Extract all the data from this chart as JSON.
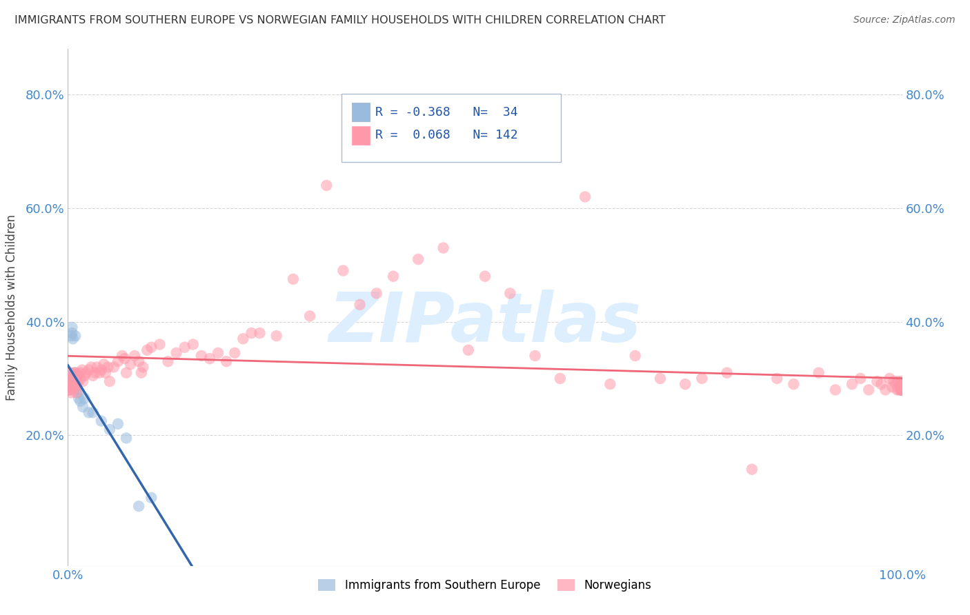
{
  "title": "IMMIGRANTS FROM SOUTHERN EUROPE VS NORWEGIAN FAMILY HOUSEHOLDS WITH CHILDREN CORRELATION CHART",
  "source": "Source: ZipAtlas.com",
  "ylabel": "Family Households with Children",
  "xlim": [
    0.0,
    1.0
  ],
  "ylim": [
    -0.03,
    0.88
  ],
  "yticks": [
    0.2,
    0.4,
    0.6,
    0.8
  ],
  "ytick_labels": [
    "20.0%",
    "40.0%",
    "60.0%",
    "80.0%"
  ],
  "xticks": [
    0.0,
    1.0
  ],
  "xtick_labels": [
    "0.0%",
    "100.0%"
  ],
  "legend_r_blue": "-0.368",
  "legend_n_blue": "34",
  "legend_r_pink": "0.068",
  "legend_n_pink": "142",
  "legend_label_blue": "Immigrants from Southern Europe",
  "legend_label_pink": "Norwegians",
  "blue_color": "#99BBDD",
  "pink_color": "#FF99AA",
  "blue_trend_color": "#3366AA",
  "pink_trend_color": "#EE6677",
  "blue_dash_color": "#99BBDD",
  "watermark": "ZIPatlas",
  "watermark_color": "#DDEEFF",
  "background_color": "#FFFFFF",
  "grid_color": "#CCCCCC",
  "blue_x": [
    0.001,
    0.002,
    0.002,
    0.003,
    0.003,
    0.004,
    0.004,
    0.004,
    0.005,
    0.005,
    0.006,
    0.006,
    0.007,
    0.007,
    0.008,
    0.008,
    0.009,
    0.009,
    0.01,
    0.01,
    0.011,
    0.012,
    0.013,
    0.015,
    0.018,
    0.02,
    0.025,
    0.03,
    0.04,
    0.05,
    0.06,
    0.07,
    0.085,
    0.1
  ],
  "blue_y": [
    0.28,
    0.295,
    0.31,
    0.285,
    0.3,
    0.295,
    0.305,
    0.375,
    0.38,
    0.39,
    0.37,
    0.3,
    0.285,
    0.295,
    0.31,
    0.3,
    0.375,
    0.295,
    0.285,
    0.29,
    0.28,
    0.275,
    0.265,
    0.26,
    0.25,
    0.265,
    0.24,
    0.24,
    0.225,
    0.21,
    0.22,
    0.195,
    0.075,
    0.09
  ],
  "pink_x": [
    0.001,
    0.002,
    0.003,
    0.003,
    0.004,
    0.004,
    0.005,
    0.005,
    0.006,
    0.006,
    0.007,
    0.008,
    0.008,
    0.009,
    0.01,
    0.01,
    0.011,
    0.012,
    0.013,
    0.015,
    0.015,
    0.017,
    0.018,
    0.02,
    0.022,
    0.025,
    0.028,
    0.03,
    0.033,
    0.035,
    0.038,
    0.04,
    0.043,
    0.045,
    0.048,
    0.05,
    0.055,
    0.06,
    0.065,
    0.068,
    0.07,
    0.075,
    0.08,
    0.085,
    0.088,
    0.09,
    0.095,
    0.1,
    0.11,
    0.12,
    0.13,
    0.14,
    0.15,
    0.16,
    0.17,
    0.18,
    0.19,
    0.2,
    0.21,
    0.22,
    0.23,
    0.25,
    0.27,
    0.29,
    0.31,
    0.33,
    0.35,
    0.37,
    0.39,
    0.42,
    0.45,
    0.48,
    0.5,
    0.53,
    0.56,
    0.59,
    0.62,
    0.65,
    0.68,
    0.71,
    0.74,
    0.76,
    0.79,
    0.82,
    0.85,
    0.87,
    0.9,
    0.92,
    0.94,
    0.95,
    0.96,
    0.97,
    0.975,
    0.98,
    0.985,
    0.988,
    0.99,
    0.992,
    0.994,
    0.995,
    0.996,
    0.997,
    0.998,
    0.999,
    0.999,
    0.999,
    0.999,
    0.999,
    0.999,
    0.999,
    0.999,
    0.999,
    0.999,
    0.999,
    0.999,
    0.999,
    0.999,
    0.999,
    0.999,
    0.999,
    0.999,
    0.999,
    0.999,
    0.999,
    0.999,
    0.999,
    0.999,
    0.999,
    0.999,
    0.999,
    0.999,
    0.999,
    0.999,
    0.999,
    0.999,
    0.999,
    0.999,
    0.999,
    0.999
  ],
  "pink_y": [
    0.28,
    0.285,
    0.28,
    0.31,
    0.275,
    0.3,
    0.295,
    0.285,
    0.29,
    0.3,
    0.285,
    0.295,
    0.31,
    0.285,
    0.275,
    0.295,
    0.31,
    0.305,
    0.295,
    0.3,
    0.31,
    0.315,
    0.295,
    0.305,
    0.31,
    0.315,
    0.32,
    0.305,
    0.31,
    0.32,
    0.31,
    0.315,
    0.325,
    0.31,
    0.32,
    0.295,
    0.32,
    0.33,
    0.34,
    0.335,
    0.31,
    0.325,
    0.34,
    0.33,
    0.31,
    0.32,
    0.35,
    0.355,
    0.36,
    0.33,
    0.345,
    0.355,
    0.36,
    0.34,
    0.335,
    0.345,
    0.33,
    0.345,
    0.37,
    0.38,
    0.38,
    0.375,
    0.475,
    0.41,
    0.64,
    0.49,
    0.43,
    0.45,
    0.48,
    0.51,
    0.53,
    0.35,
    0.48,
    0.45,
    0.34,
    0.3,
    0.62,
    0.29,
    0.34,
    0.3,
    0.29,
    0.3,
    0.31,
    0.14,
    0.3,
    0.29,
    0.31,
    0.28,
    0.29,
    0.3,
    0.28,
    0.295,
    0.29,
    0.28,
    0.3,
    0.285,
    0.295,
    0.29,
    0.28,
    0.295,
    0.28,
    0.29,
    0.285,
    0.295,
    0.28,
    0.29,
    0.28,
    0.285,
    0.29,
    0.28,
    0.285,
    0.29,
    0.28,
    0.285,
    0.29,
    0.28,
    0.285,
    0.29,
    0.28,
    0.285,
    0.29,
    0.28,
    0.285,
    0.29,
    0.28,
    0.285,
    0.29,
    0.28,
    0.285,
    0.29,
    0.28,
    0.285,
    0.29,
    0.28,
    0.285,
    0.29,
    0.28,
    0.285,
    0.29
  ]
}
